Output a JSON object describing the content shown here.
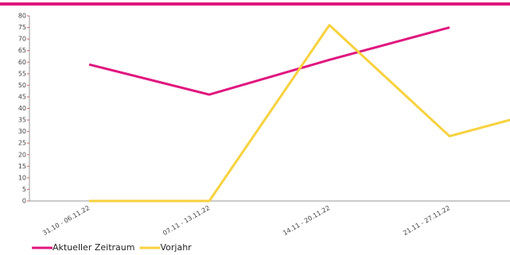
{
  "chart_data": {
    "type": "line",
    "categories": [
      "31.10 - 06.11.22",
      "07.11 - 13.11.22",
      "14.11 - 20.11.22",
      "21.11 - 27.11.22",
      null
    ],
    "series": [
      {
        "name": "Aktueller Zeitraum",
        "color": "#e0177f",
        "values": [
          59,
          46,
          61,
          75,
          null
        ]
      },
      {
        "name": "Vorjahr",
        "color": "#f7d23e",
        "values": [
          0,
          0,
          76,
          28,
          42
        ]
      }
    ],
    "ylim": [
      0,
      80
    ],
    "yticks": [
      0,
      5,
      10,
      15,
      20,
      25,
      30,
      35,
      40,
      45,
      50,
      55,
      60,
      65,
      70,
      75,
      80
    ],
    "grid": false
  }
}
